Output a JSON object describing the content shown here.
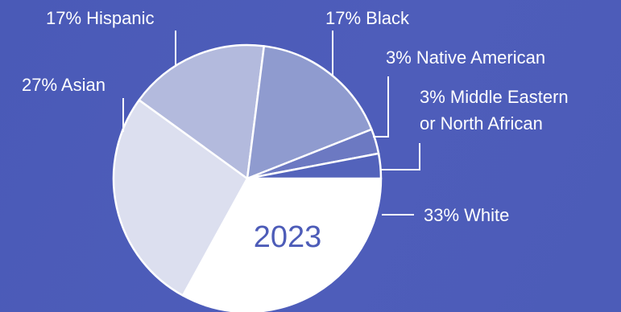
{
  "chart_data": {
    "type": "pie",
    "title": "",
    "center_label": "2023",
    "slices": [
      {
        "name": "White",
        "value": 33,
        "label": "33% White",
        "color": "#ffffff"
      },
      {
        "name": "Asian",
        "value": 27,
        "label": "27% Asian",
        "color": "#dcdfef"
      },
      {
        "name": "Hispanic",
        "value": 17,
        "label": "17% Hispanic",
        "color": "#b3badd"
      },
      {
        "name": "Black",
        "value": 17,
        "label": "17% Black",
        "color": "#8f9bcf"
      },
      {
        "name": "Native American",
        "value": 3,
        "label": "3% Native American",
        "color": "#6c79c2"
      },
      {
        "name": "Middle Eastern or North African",
        "value": 3,
        "label_lines": [
          "3% Middle Eastern",
          "or North African"
        ],
        "color": "#5363bb"
      }
    ],
    "colors": {
      "background": "#4b5bb8",
      "text": "#ffffff",
      "center_text": "#4d5cb8"
    }
  }
}
